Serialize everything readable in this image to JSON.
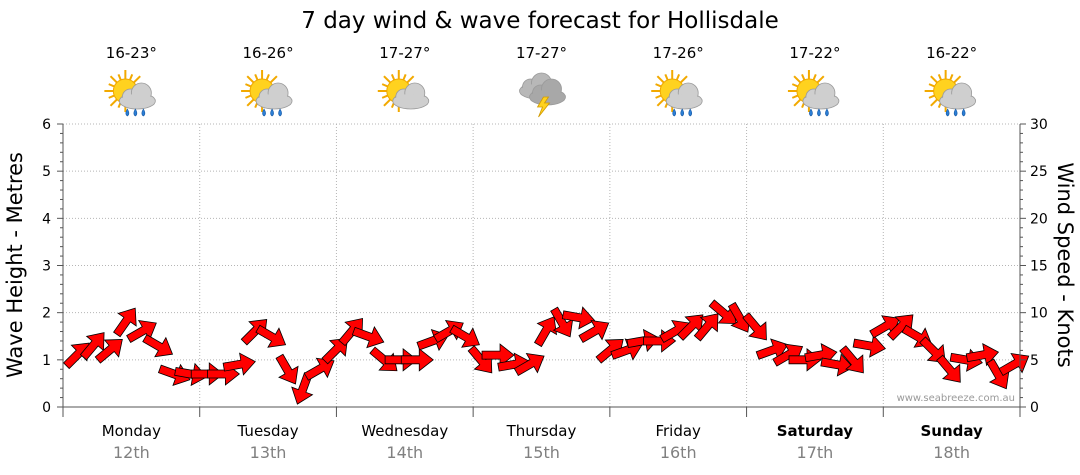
{
  "chart_data": {
    "type": "line",
    "title": "7 day wind & wave forecast for Hollisdale",
    "ylabel_left": "Wave Height - Metres",
    "ylabel_right": "Wind Speed - Knots",
    "ylim_left": [
      0,
      6
    ],
    "ylim_right": [
      0,
      30
    ],
    "yticks_left": [
      "0",
      "1",
      "2",
      "3",
      "4",
      "5",
      "6"
    ],
    "yticks_right": [
      "0",
      "5",
      "10",
      "15",
      "20",
      "25",
      "30"
    ],
    "days": [
      {
        "day": "Monday",
        "date": "12th",
        "temp": "16-23°",
        "icon": "sun-cloud-rain-icon",
        "bold": false
      },
      {
        "day": "Tuesday",
        "date": "13th",
        "temp": "16-26°",
        "icon": "sun-cloud-rain-icon",
        "bold": false
      },
      {
        "day": "Wednesday",
        "date": "14th",
        "temp": "17-27°",
        "icon": "sun-cloud-icon",
        "bold": false
      },
      {
        "day": "Thursday",
        "date": "15th",
        "temp": "17-27°",
        "icon": "storm-icon",
        "bold": false
      },
      {
        "day": "Friday",
        "date": "16th",
        "temp": "17-26°",
        "icon": "sun-cloud-rain-icon",
        "bold": false
      },
      {
        "day": "Saturday",
        "date": "17th",
        "temp": "17-22°",
        "icon": "sun-cloud-rain-icon",
        "bold": true
      },
      {
        "day": "Sunday",
        "date": "18th",
        "temp": "16-22°",
        "icon": "sun-cloud-rain-icon",
        "bold": true
      }
    ],
    "series": [
      {
        "name": "Wind Speed",
        "color": "#ff0000",
        "values": [
          5.5,
          6.5,
          6.0,
          9.0,
          8.0,
          6.5,
          3.5,
          3.5,
          3.5,
          3.5,
          4.5,
          8.0,
          7.5,
          4.0,
          2.0,
          4.0,
          6.0,
          8.0,
          7.5,
          5.0,
          5.0,
          5.0,
          7.0,
          8.0,
          7.5,
          5.0,
          5.5,
          4.5,
          4.5,
          8.0,
          9.0,
          9.5,
          8.0,
          6.0,
          6.0,
          7.0,
          7.0,
          8.0,
          8.5,
          8.5,
          10.0,
          9.5,
          8.5,
          6.0,
          5.5,
          5.0,
          5.5,
          4.5,
          5.0,
          6.5,
          8.5,
          8.5,
          7.5,
          6.0,
          4.0,
          5.0,
          5.5,
          3.5,
          4.5
        ]
      }
    ],
    "wind_direction_deg": [
      45,
      40,
      50,
      35,
      60,
      120,
      110,
      100,
      90,
      90,
      80,
      45,
      120,
      150,
      200,
      60,
      45,
      40,
      110,
      130,
      90,
      90,
      70,
      60,
      120,
      140,
      90,
      80,
      60,
      30,
      150,
      100,
      60,
      50,
      70,
      80,
      90,
      60,
      45,
      40,
      130,
      150,
      140,
      70,
      60,
      90,
      80,
      100,
      140,
      100,
      60,
      45,
      120,
      135,
      140,
      100,
      80,
      150,
      60
    ],
    "credit": "www.seabreeze.com.au"
  }
}
